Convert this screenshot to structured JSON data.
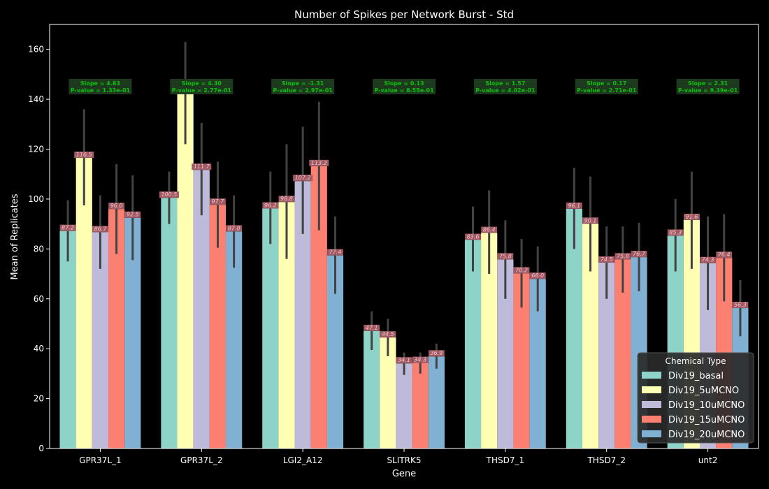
{
  "chart_data": {
    "type": "bar",
    "title": "Number of Spikes per Network Burst - Std",
    "xlabel": "Gene",
    "ylabel": "Mean of Replicates",
    "ylim": [
      0,
      170
    ],
    "yticks": [
      0,
      20,
      40,
      60,
      80,
      100,
      120,
      140,
      160
    ],
    "grid": false,
    "legend_position": "bottom-right",
    "legend_title": "Chemical Type",
    "categories": [
      "GPR37L_1",
      "GPR37L_2",
      "LGI2_A12",
      "SLITRK5",
      "THSD7_1",
      "THSD7_2",
      "unt2"
    ],
    "series": [
      {
        "name": "Div19_basal",
        "color": "#8dd3c7",
        "values": [
          87.2,
          100.5,
          96.2,
          47.1,
          83.6,
          96.1,
          85.3
        ],
        "labels": [
          "87.2",
          "100.5",
          "96.2",
          "47.1",
          "83.6",
          "96.1",
          "85.3"
        ],
        "err_low": [
          75,
          90,
          82,
          39.5,
          71,
          80,
          71
        ],
        "err_high": [
          99.5,
          111,
          111,
          55,
          97,
          112.5,
          100
        ]
      },
      {
        "name": "Div19_5uMCNO",
        "color": "#ffffb3",
        "values": [
          116.5,
          142.3,
          98.8,
          44.5,
          86.4,
          90.1,
          91.6
        ],
        "labels": [
          "116.5",
          "142.3",
          "98.8",
          "44.5",
          "86.4",
          "90.1",
          "91.6"
        ],
        "err_low": [
          97.5,
          122,
          76,
          37,
          70,
          71,
          72
        ],
        "err_high": [
          136,
          163,
          122,
          52,
          103.5,
          109,
          111
        ]
      },
      {
        "name": "Div19_10uMCNO",
        "color": "#bebada",
        "values": [
          86.7,
          111.7,
          107.2,
          34.1,
          75.8,
          74.5,
          74.3
        ],
        "labels": [
          "86.7",
          "111.7",
          "107.2",
          "34.1",
          "75.8",
          "74.5",
          "74.3"
        ],
        "err_low": [
          72,
          93.5,
          86,
          29.5,
          60,
          60,
          55.5
        ],
        "err_high": [
          101.5,
          130.5,
          129,
          38.5,
          91.5,
          89,
          93
        ]
      },
      {
        "name": "Div19_15uMCNO",
        "color": "#fb8072",
        "values": [
          96.0,
          97.7,
          113.2,
          34.3,
          70.2,
          75.8,
          76.4
        ],
        "labels": [
          "96.0",
          "97.7",
          "113.2",
          "34.3",
          "70.2",
          "75.8",
          "76.4"
        ],
        "err_low": [
          78,
          80.5,
          87.5,
          30,
          56.5,
          62.5,
          59
        ],
        "err_high": [
          114,
          115,
          139,
          38.5,
          84,
          89,
          94
        ]
      },
      {
        "name": "Div19_20uMCNO",
        "color": "#80b1d3",
        "values": [
          92.5,
          87.0,
          77.4,
          36.9,
          68.0,
          76.7,
          56.3
        ],
        "labels": [
          "92.5",
          "87.0",
          "77.4",
          "36.9",
          "68.0",
          "76.7",
          "56.3"
        ],
        "err_low": [
          75.5,
          72.5,
          62,
          32,
          55,
          63,
          45
        ],
        "err_high": [
          109.5,
          101.5,
          93,
          42,
          81,
          90.5,
          67.5
        ]
      }
    ],
    "annotations": [
      {
        "category": "GPR37L_1",
        "line1": "Slope = 4.83",
        "line2": "P-value = 1.33e-01"
      },
      {
        "category": "GPR37L_2",
        "line1": "Slope = 4.30",
        "line2": "P-value = 2.77e-01"
      },
      {
        "category": "LGI2_A12",
        "line1": "Slope = -1.31",
        "line2": "P-value = 2.97e-01"
      },
      {
        "category": "SLITRK5",
        "line1": "Slope = 0.13",
        "line2": "P-value = 8.55e-01"
      },
      {
        "category": "THSD7_1",
        "line1": "Slope = 1.57",
        "line2": "P-value = 4.02e-01"
      },
      {
        "category": "THSD7_2",
        "line1": "Slope = 0.17",
        "line2": "P-value = 2.71e-01"
      },
      {
        "category": "unt2",
        "line1": "Slope = 2.31",
        "line2": "P-value = 9.39e-01"
      }
    ],
    "colors": {
      "background": "#000000",
      "axes": "#ffffff",
      "text": "#ffffff",
      "errorbar": "#424242",
      "bar_label_bg": "#a05a64",
      "bar_label_text": "#f4c2c8",
      "annotation_bg": "#1e3a1e",
      "annotation_text": "#0cbf0c",
      "legend_bg": "#2a2a2a"
    }
  }
}
